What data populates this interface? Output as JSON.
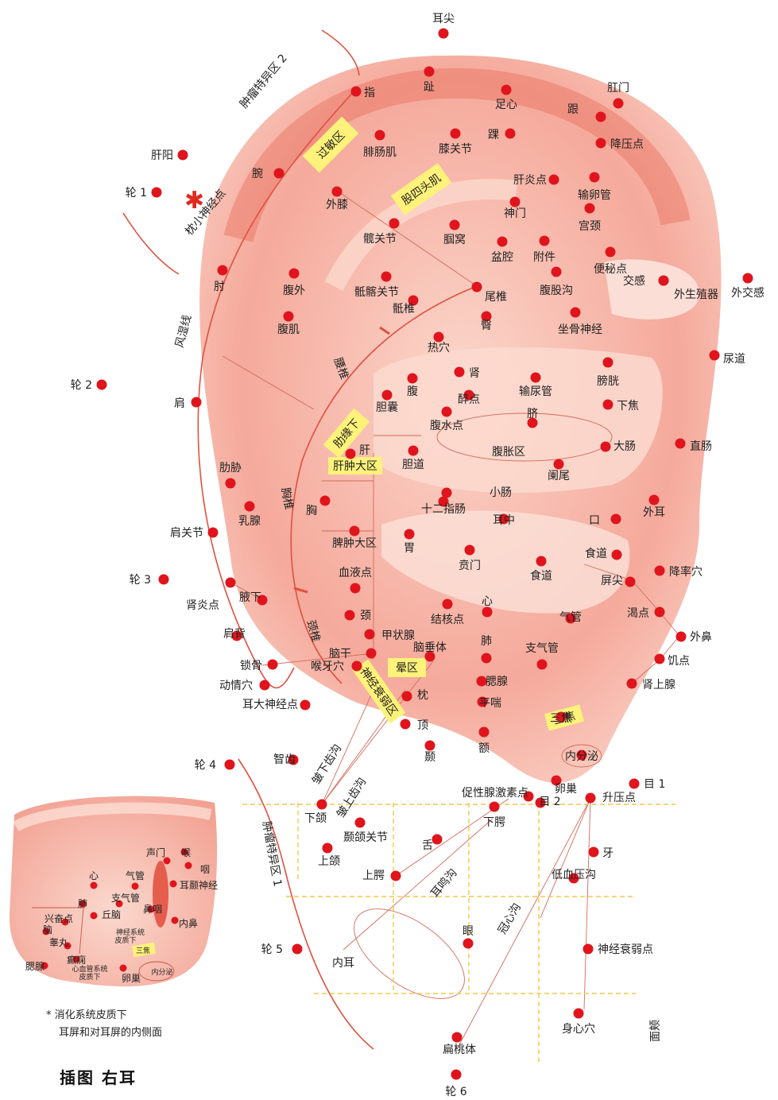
{
  "caption": "插图 右耳",
  "footnote": {
    "marker": "*",
    "line1": "消化系统皮质下",
    "line2": "耳屏和对耳屏的内侧面"
  },
  "colors": {
    "point": "#e0141c",
    "ear_fill": "#f08a7c",
    "zone_yellow": "#fff27a",
    "grid_line": "#f2d24a"
  },
  "points": [
    {
      "t": "耳尖"
    },
    {
      "t": "趾"
    },
    {
      "t": "指"
    },
    {
      "t": "足心"
    },
    {
      "t": "肛门"
    },
    {
      "t": "跟"
    },
    {
      "t": "降压点"
    },
    {
      "t": "踝"
    },
    {
      "t": "膝关节"
    },
    {
      "t": "腓肠肌"
    },
    {
      "t": "肝阳"
    },
    {
      "t": "轮 1"
    },
    {
      "t": "腕"
    },
    {
      "t": "肝炎点"
    },
    {
      "t": "输卵管"
    },
    {
      "t": "外膝"
    },
    {
      "t": "神门"
    },
    {
      "t": "宫颈"
    },
    {
      "t": "髋关节"
    },
    {
      "t": "腘窝"
    },
    {
      "t": "盆腔"
    },
    {
      "t": "附件"
    },
    {
      "t": "便秘点"
    },
    {
      "t": "肘"
    },
    {
      "t": "腹外"
    },
    {
      "t": "骶髂关节"
    },
    {
      "t": "腹股沟"
    },
    {
      "t": "交感"
    },
    {
      "t": "外生殖器"
    },
    {
      "t": "外交感"
    },
    {
      "t": "尾椎"
    },
    {
      "t": "骶椎"
    },
    {
      "t": "臀"
    },
    {
      "t": "坐骨神经"
    },
    {
      "t": "腹肌"
    },
    {
      "t": "热穴"
    },
    {
      "t": "尿道"
    },
    {
      "t": "轮 2"
    },
    {
      "t": "肾"
    },
    {
      "t": "腹"
    },
    {
      "t": "膀胱"
    },
    {
      "t": "肩"
    },
    {
      "t": "胆囊"
    },
    {
      "t": "醉点"
    },
    {
      "t": "输尿管"
    },
    {
      "t": "下焦"
    },
    {
      "t": "腹水点"
    },
    {
      "t": "脐"
    },
    {
      "t": "肝"
    },
    {
      "t": "大肠"
    },
    {
      "t": "直肠"
    },
    {
      "t": "胆道"
    },
    {
      "t": "腹胀区"
    },
    {
      "t": "阑尾"
    },
    {
      "t": "肋胁"
    },
    {
      "t": "小肠"
    },
    {
      "t": "乳腺"
    },
    {
      "t": "胸"
    },
    {
      "t": "十二指肠"
    },
    {
      "t": "外耳"
    },
    {
      "t": "耳中"
    },
    {
      "t": "口"
    },
    {
      "t": "肩关节"
    },
    {
      "t": "脾肿大区"
    },
    {
      "t": "胃"
    },
    {
      "t": "食道"
    },
    {
      "t": "贲门"
    },
    {
      "t": "轮 3"
    },
    {
      "t": "降率穴"
    },
    {
      "t": "食道"
    },
    {
      "t": "屏尖"
    },
    {
      "t": "血液点"
    },
    {
      "t": "肾炎点"
    },
    {
      "t": "腋下"
    },
    {
      "t": "心"
    },
    {
      "t": "渴点"
    },
    {
      "t": "颈"
    },
    {
      "t": "结核点"
    },
    {
      "t": "气管"
    },
    {
      "t": "肩背"
    },
    {
      "t": "甲状腺"
    },
    {
      "t": "外鼻"
    },
    {
      "t": "肺"
    },
    {
      "t": "脑垂体"
    },
    {
      "t": "支气管"
    },
    {
      "t": "脑干"
    },
    {
      "t": "锁骨"
    },
    {
      "t": "饥点"
    },
    {
      "t": "喉牙穴"
    },
    {
      "t": "腮腺"
    },
    {
      "t": "肾上腺"
    },
    {
      "t": "动情穴"
    },
    {
      "t": "枕"
    },
    {
      "t": "平喘"
    },
    {
      "t": "耳大神经点"
    },
    {
      "t": "顶"
    },
    {
      "t": "三焦"
    },
    {
      "t": "智齿"
    },
    {
      "t": "颞"
    },
    {
      "t": "额"
    },
    {
      "t": "内分泌"
    },
    {
      "t": "轮 4"
    },
    {
      "t": "目 1"
    },
    {
      "t": "卵巢"
    },
    {
      "t": "促性腺激素点"
    },
    {
      "t": "升压点"
    },
    {
      "t": "目 2"
    },
    {
      "t": "下颌"
    },
    {
      "t": "下腭"
    },
    {
      "t": "颞颌关节"
    },
    {
      "t": "舌"
    },
    {
      "t": "牙"
    },
    {
      "t": "上颌"
    },
    {
      "t": "上腭"
    },
    {
      "t": "低血压沟"
    },
    {
      "t": "眼"
    },
    {
      "t": "轮 5"
    },
    {
      "t": "面颊"
    },
    {
      "t": "神经衰弱点"
    },
    {
      "t": "内耳"
    },
    {
      "t": "身心穴"
    },
    {
      "t": "扁桃体"
    },
    {
      "t": "轮 6"
    }
  ],
  "zones": [
    {
      "t": "过敏区"
    },
    {
      "t": "股四头肌"
    },
    {
      "t": "肋缘下"
    },
    {
      "t": "肝肿大区"
    },
    {
      "t": "晕区"
    },
    {
      "t": "神经衰弱区"
    },
    {
      "t": "三焦"
    }
  ],
  "line_labels": [
    {
      "t": "肿瘤特异区 2"
    },
    {
      "t": "枕小神经点"
    },
    {
      "t": "风湿线"
    },
    {
      "t": "腰椎"
    },
    {
      "t": "胸椎"
    },
    {
      "t": "颈椎"
    },
    {
      "t": "皱下齿沟"
    },
    {
      "t": "皱上齿沟"
    },
    {
      "t": "肿瘤特异区 1"
    },
    {
      "t": "耳鸣沟"
    },
    {
      "t": "冠心沟"
    }
  ],
  "inset": {
    "labels": [
      {
        "t": "声门"
      },
      {
        "t": "喉"
      },
      {
        "t": "咽"
      },
      {
        "t": "心"
      },
      {
        "t": "气管"
      },
      {
        "t": "耳颞神经"
      },
      {
        "t": "肺"
      },
      {
        "t": "支气管"
      },
      {
        "t": "丘脑"
      },
      {
        "t": "鼻咽"
      },
      {
        "t": "兴奋点"
      },
      {
        "t": "内鼻"
      },
      {
        "t": "脑"
      },
      {
        "t": "神经系统"
      },
      {
        "t": "皮质下"
      },
      {
        "t": "睾丸"
      },
      {
        "t": "三焦"
      },
      {
        "t": "腮腺"
      },
      {
        "t": "癫痫"
      },
      {
        "t": "心血管系统"
      },
      {
        "t": "皮质下"
      },
      {
        "t": "卵巢"
      },
      {
        "t": "内分泌"
      }
    ]
  }
}
